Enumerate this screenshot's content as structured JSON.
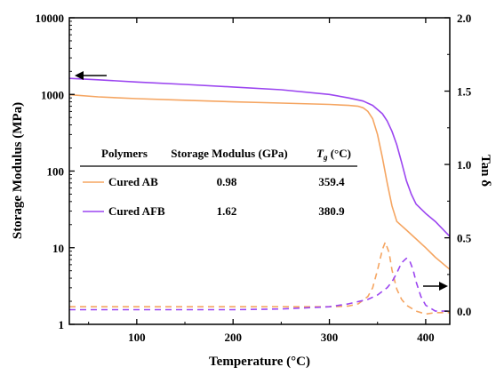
{
  "chart_data": {
    "type": "line",
    "title": "",
    "xlabel": "Temperature (°C)",
    "ylabel_left": "Storage Modulus (MPa)",
    "ylabel_right": "Tan δ",
    "xlim": [
      30,
      425
    ],
    "ylim_left": [
      1,
      10000
    ],
    "left_scale": "log",
    "ylim_right": [
      -0.09,
      2.0
    ],
    "x_ticks": [
      100,
      200,
      300,
      400
    ],
    "x_tick_labels": [
      "100",
      "200",
      "300",
      "400"
    ],
    "left_ticks": [
      1,
      10,
      100,
      1000,
      10000
    ],
    "left_tick_labels": [
      "1",
      "10",
      "100",
      "1000",
      "10000"
    ],
    "right_ticks": [
      0.0,
      0.5,
      1.0,
      1.5,
      2.0
    ],
    "right_tick_labels": [
      "0.0",
      "0.5",
      "1.0",
      "1.5",
      "2.0"
    ],
    "grid": false,
    "colors": {
      "AB": "#f5a561",
      "AFB": "#9b45f0"
    },
    "series": [
      {
        "name": "Cured AB",
        "kind": "storage-modulus",
        "axis": "left",
        "color": "#f5a561",
        "style": "solid",
        "x": [
          30,
          60,
          100,
          150,
          200,
          250,
          300,
          320,
          330,
          335,
          340,
          345,
          350,
          355,
          360,
          365,
          370,
          380,
          390,
          400,
          410,
          425
        ],
        "y": [
          990,
          930,
          880,
          840,
          800,
          770,
          740,
          720,
          700,
          670,
          600,
          480,
          300,
          150,
          70,
          35,
          22,
          17,
          13,
          10,
          7.5,
          5.2
        ]
      },
      {
        "name": "Cured AFB",
        "kind": "storage-modulus",
        "axis": "left",
        "color": "#9b45f0",
        "style": "solid",
        "x": [
          30,
          60,
          100,
          150,
          200,
          250,
          300,
          320,
          335,
          345,
          355,
          360,
          365,
          370,
          375,
          380,
          385,
          390,
          400,
          410,
          425
        ],
        "y": [
          1620,
          1550,
          1450,
          1350,
          1250,
          1150,
          1000,
          900,
          820,
          720,
          560,
          450,
          330,
          220,
          130,
          75,
          50,
          37,
          28,
          22,
          14
        ]
      },
      {
        "name": "Cured AB",
        "kind": "tan-delta",
        "axis": "right",
        "color": "#f5a561",
        "style": "dashed",
        "x": [
          30,
          100,
          200,
          300,
          320,
          330,
          340,
          345,
          350,
          355,
          358,
          362,
          365,
          370,
          375,
          380,
          390,
          400,
          410,
          425
        ],
        "y": [
          0.03,
          0.03,
          0.03,
          0.03,
          0.035,
          0.05,
          0.1,
          0.16,
          0.28,
          0.42,
          0.47,
          0.4,
          0.28,
          0.15,
          0.08,
          0.04,
          0.0,
          -0.02,
          -0.01,
          -0.01
        ]
      },
      {
        "name": "Cured AFB",
        "kind": "tan-delta",
        "axis": "right",
        "color": "#9b45f0",
        "style": "dashed",
        "x": [
          30,
          100,
          200,
          250,
          300,
          320,
          340,
          350,
          360,
          365,
          370,
          375,
          380,
          383,
          387,
          390,
          395,
          400,
          410,
          425
        ],
        "y": [
          0.01,
          0.01,
          0.01,
          0.015,
          0.03,
          0.05,
          0.08,
          0.11,
          0.16,
          0.2,
          0.26,
          0.33,
          0.36,
          0.35,
          0.28,
          0.2,
          0.1,
          0.04,
          0.0,
          0.0
        ]
      }
    ],
    "annotations": [
      {
        "type": "arrow",
        "direction": "left",
        "axis": "left"
      },
      {
        "type": "arrow",
        "direction": "right",
        "axis": "right"
      }
    ],
    "table": {
      "headers": {
        "polymers": "Polymers",
        "modulus": "Storage Modulus (GPa)",
        "tg_main": "T",
        "tg_sub": "g",
        "tg_unit": " (°C)"
      },
      "rows": [
        {
          "color": "#f5a561",
          "name": "Cured AB",
          "modulus": "0.98",
          "tg": "359.4"
        },
        {
          "color": "#9b45f0",
          "name": "Cured AFB",
          "modulus": "1.62",
          "tg": "380.9"
        }
      ]
    }
  }
}
